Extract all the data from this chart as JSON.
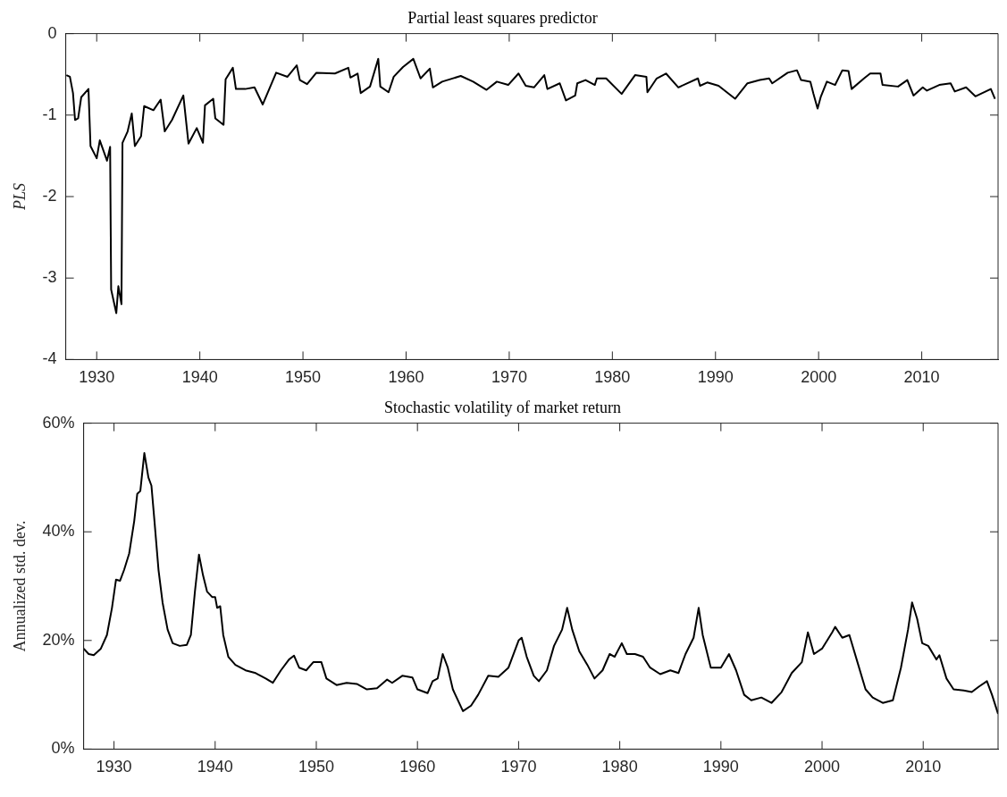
{
  "chart_data": [
    {
      "type": "line",
      "title": "Partial least squares predictor",
      "ylabel": "PLS",
      "xlim": [
        1927,
        2017.4
      ],
      "xticks": [
        1930,
        1940,
        1950,
        1960,
        1970,
        1980,
        1990,
        2000,
        2010
      ],
      "ylim": [
        -4,
        0
      ],
      "yticks": [
        -4,
        -3,
        -2,
        -1,
        0
      ],
      "grid": false,
      "legend": false,
      "marker": "none",
      "line_style": "solid",
      "series": [
        {
          "color": "#000000",
          "x": [
            1927.06,
            1927.4,
            1927.7,
            1927.9,
            1928.2,
            1928.5,
            1929.2,
            1929.4,
            1930.0,
            1930.3,
            1931.0,
            1931.3,
            1931.4,
            1931.9,
            1932.1,
            1932.4,
            1932.5,
            1933.0,
            1933.4,
            1933.7,
            1934.3,
            1934.6,
            1935.5,
            1936.2,
            1936.6,
            1937.3,
            1938.4,
            1938.9,
            1939.7,
            1940.3,
            1940.5,
            1941.3,
            1941.5,
            1942.3,
            1942.5,
            1943.2,
            1943.5,
            1944.4,
            1945.3,
            1946.1,
            1947.4,
            1948.5,
            1949.4,
            1949.7,
            1950.4,
            1951.3,
            1953.1,
            1954.4,
            1954.6,
            1955.3,
            1955.6,
            1956.5,
            1957.3,
            1957.5,
            1958.3,
            1958.8,
            1959.7,
            1960.7,
            1961.4,
            1962.3,
            1962.6,
            1963.5,
            1965.3,
            1966.5,
            1967.8,
            1968.8,
            1969.9,
            1970.9,
            1971.6,
            1972.4,
            1973.4,
            1973.7,
            1974.9,
            1975.5,
            1976.4,
            1976.6,
            1977.4,
            1978.3,
            1978.5,
            1979.4,
            1980.9,
            1982.2,
            1983.3,
            1983.4,
            1984.3,
            1985.2,
            1986.4,
            1988.3,
            1988.5,
            1989.2,
            1990.3,
            1991.9,
            1993.1,
            1994.3,
            1995.2,
            1995.5,
            1997.0,
            1997.9,
            1998.3,
            1999.2,
            1999.5,
            1999.9,
            2000.2,
            2000.8,
            2001.6,
            2002.3,
            2002.9,
            2003.2,
            2004.4,
            2005.0,
            2006.0,
            2006.2,
            2007.7,
            2008.6,
            2009.2,
            2010.1,
            2010.5,
            2011.7,
            2012.8,
            2013.2,
            2014.3,
            2015.2,
            2016.7,
            2017.1
          ],
          "values": [
            -0.51,
            -0.53,
            -0.73,
            -1.06,
            -1.04,
            -0.78,
            -0.68,
            -1.38,
            -1.53,
            -1.31,
            -1.56,
            -1.39,
            -3.14,
            -3.43,
            -3.1,
            -3.32,
            -1.34,
            -1.2,
            -0.98,
            -1.38,
            -1.26,
            -0.89,
            -0.94,
            -0.81,
            -1.2,
            -1.06,
            -0.76,
            -1.35,
            -1.16,
            -1.34,
            -0.88,
            -0.8,
            -1.04,
            -1.12,
            -0.56,
            -0.42,
            -0.68,
            -0.68,
            -0.66,
            -0.87,
            -0.48,
            -0.53,
            -0.39,
            -0.57,
            -0.62,
            -0.48,
            -0.49,
            -0.42,
            -0.54,
            -0.49,
            -0.73,
            -0.65,
            -0.31,
            -0.65,
            -0.72,
            -0.53,
            -0.41,
            -0.31,
            -0.55,
            -0.43,
            -0.66,
            -0.59,
            -0.52,
            -0.59,
            -0.69,
            -0.59,
            -0.63,
            -0.49,
            -0.64,
            -0.66,
            -0.51,
            -0.68,
            -0.61,
            -0.82,
            -0.76,
            -0.61,
            -0.57,
            -0.63,
            -0.55,
            -0.55,
            -0.74,
            -0.51,
            -0.53,
            -0.72,
            -0.55,
            -0.49,
            -0.66,
            -0.55,
            -0.64,
            -0.6,
            -0.64,
            -0.8,
            -0.61,
            -0.57,
            -0.55,
            -0.61,
            -0.48,
            -0.45,
            -0.57,
            -0.59,
            -0.74,
            -0.92,
            -0.78,
            -0.59,
            -0.63,
            -0.45,
            -0.46,
            -0.68,
            -0.55,
            -0.49,
            -0.49,
            -0.63,
            -0.65,
            -0.57,
            -0.76,
            -0.66,
            -0.7,
            -0.63,
            -0.61,
            -0.71,
            -0.66,
            -0.77,
            -0.68,
            -0.8
          ]
        }
      ]
    },
    {
      "type": "line",
      "title": "Stochastic volatility of market return",
      "ylabel": "Annualized std. dev.",
      "xlim": [
        1927,
        2017.4
      ],
      "xticks": [
        1930,
        1940,
        1950,
        1960,
        1970,
        1980,
        1990,
        2000,
        2010
      ],
      "ylim": [
        0,
        60
      ],
      "yticks": [
        {
          "value": 0,
          "label": "0%"
        },
        {
          "value": 20,
          "label": "20%"
        },
        {
          "value": 40,
          "label": "40%"
        },
        {
          "value": 60,
          "label": "60%"
        }
      ],
      "grid": false,
      "legend": false,
      "marker": "none",
      "line_style": "solid",
      "series": [
        {
          "color": "#000000",
          "x": [
            1927.0,
            1927.5,
            1928.0,
            1928.7,
            1929.3,
            1929.8,
            1930.2,
            1930.6,
            1931.0,
            1931.5,
            1932.0,
            1932.3,
            1932.6,
            1933.0,
            1933.4,
            1933.7,
            1934.0,
            1934.4,
            1934.8,
            1935.3,
            1935.8,
            1936.5,
            1937.2,
            1937.6,
            1938.0,
            1938.4,
            1938.8,
            1939.2,
            1939.7,
            1940.0,
            1940.2,
            1940.5,
            1940.8,
            1941.3,
            1942.0,
            1943.0,
            1944.0,
            1945.0,
            1945.7,
            1946.5,
            1947.3,
            1947.8,
            1948.3,
            1949.0,
            1949.7,
            1950.5,
            1951.0,
            1952.0,
            1953.0,
            1954.0,
            1955.0,
            1956.0,
            1957.0,
            1957.5,
            1958.5,
            1959.5,
            1960.0,
            1961.0,
            1961.5,
            1962.0,
            1962.5,
            1963.0,
            1963.5,
            1964.5,
            1965.3,
            1966.0,
            1967.0,
            1968.0,
            1969.0,
            1970.0,
            1970.3,
            1970.8,
            1971.5,
            1972.0,
            1972.8,
            1973.5,
            1974.3,
            1974.8,
            1975.3,
            1976.0,
            1976.8,
            1977.5,
            1978.3,
            1979.0,
            1979.5,
            1980.2,
            1980.7,
            1981.5,
            1982.3,
            1983.0,
            1984.0,
            1985.0,
            1985.8,
            1986.5,
            1987.3,
            1987.8,
            1988.2,
            1989.0,
            1990.0,
            1990.8,
            1991.5,
            1992.3,
            1993.0,
            1994.0,
            1995.0,
            1996.0,
            1997.0,
            1998.0,
            1998.6,
            1999.2,
            2000.0,
            2001.0,
            2001.3,
            2002.0,
            2002.7,
            2003.5,
            2004.3,
            2005.0,
            2006.0,
            2007.0,
            2007.8,
            2008.5,
            2008.9,
            2009.4,
            2009.9,
            2010.5,
            2011.3,
            2011.6,
            2012.3,
            2013.0,
            2014.0,
            2014.8,
            2015.5,
            2016.3,
            2016.8,
            2017.4
          ],
          "values": [
            18.5,
            17.5,
            17.3,
            18.5,
            21,
            26,
            31.2,
            31,
            33,
            36,
            42,
            47,
            47.5,
            54.5,
            50,
            48.5,
            42,
            33,
            27,
            22,
            19.5,
            19,
            19.2,
            21,
            29,
            35.8,
            32,
            29,
            28,
            28,
            26,
            26.3,
            21,
            17,
            15.5,
            14.5,
            14,
            13,
            12.2,
            14.5,
            16.5,
            17.2,
            15,
            14.5,
            16,
            16,
            13,
            11.8,
            12.2,
            12,
            11,
            11.2,
            12.8,
            12.2,
            13.5,
            13.2,
            11,
            10.3,
            12.5,
            13,
            17.5,
            15,
            11,
            7,
            8,
            10,
            13.5,
            13.3,
            15,
            20,
            20.5,
            17,
            13.5,
            12.5,
            14.5,
            19,
            22,
            26,
            22,
            18,
            15.5,
            13,
            14.5,
            17.5,
            17,
            19.5,
            17.5,
            17.5,
            17,
            15,
            13.8,
            14.5,
            14,
            17.5,
            20.5,
            26,
            21,
            15,
            15,
            17.5,
            14.5,
            10,
            9,
            9.5,
            8.5,
            10.5,
            14,
            16,
            21.5,
            17.5,
            18.5,
            21.5,
            22.5,
            20.5,
            21,
            16,
            11,
            9.5,
            8.5,
            9,
            15,
            22,
            27,
            24,
            19.5,
            19,
            16.5,
            17.3,
            13,
            11,
            10.8,
            10.5,
            11.5,
            12.5,
            10,
            6.5
          ]
        }
      ]
    }
  ]
}
